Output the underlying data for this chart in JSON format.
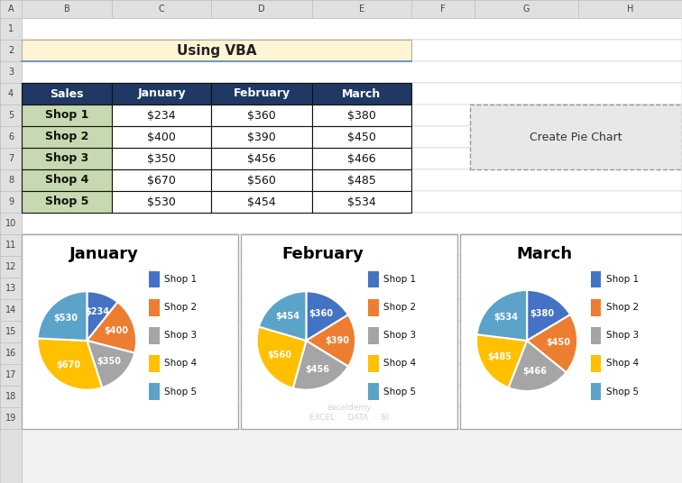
{
  "title": "Using VBA",
  "title_bg": "#fdf5d4",
  "title_border_top": "#c8c8a0",
  "title_border_bottom": "#6688bb",
  "header_bg": "#1f3864",
  "header_fg": "#ffffff",
  "row_bg": "#c6d9b0",
  "table_headers": [
    "Sales",
    "January",
    "February",
    "March"
  ],
  "shops": [
    "Shop 1",
    "Shop 2",
    "Shop 3",
    "Shop 4",
    "Shop 5"
  ],
  "january": [
    234,
    400,
    350,
    670,
    530
  ],
  "february": [
    360,
    390,
    456,
    560,
    454
  ],
  "march": [
    380,
    450,
    466,
    485,
    534
  ],
  "colors": [
    "#4472c4",
    "#ed7d31",
    "#a5a5a5",
    "#ffc000",
    "#5ba3c9"
  ],
  "chart_titles": [
    "January",
    "February",
    "March"
  ],
  "excel_bg": "#f2f2f2",
  "col_header_bg": "#e0e0e0",
  "row_header_bg": "#e0e0e0",
  "grid_color": "#c0c0c0",
  "cell_white": "#ffffff",
  "btn_bg": "#e8e8e8",
  "btn_border": "#999999",
  "chart_border": "#aaaaaa",
  "watermark_color": "#aaaacc"
}
